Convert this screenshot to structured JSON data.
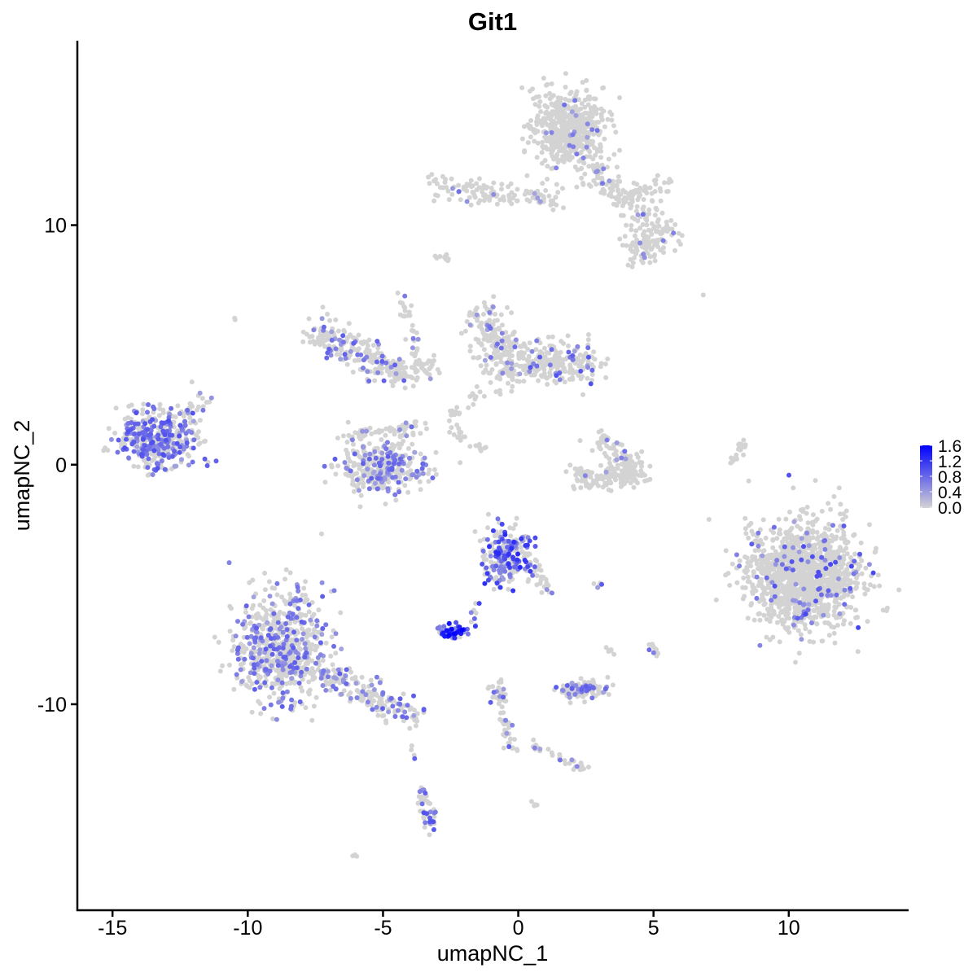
{
  "chart_data": {
    "type": "scatter",
    "title": "Git1",
    "xlabel": "umapNC_1",
    "ylabel": "umapNC_2",
    "xlim": [
      -16.3,
      14.4
    ],
    "ylim": [
      -18.6,
      17.7
    ],
    "x_ticks": [
      -15,
      -10,
      -5,
      0,
      5,
      10
    ],
    "x_tick_labels": [
      "-15",
      "-10",
      "-5",
      "0",
      "5",
      "10"
    ],
    "y_ticks": [
      -10,
      0,
      10
    ],
    "y_tick_labels": [
      "-10",
      "0",
      "10"
    ],
    "grid": false,
    "legend": {
      "placement": "right",
      "type": "colorbar",
      "range": [
        0,
        1.6
      ],
      "ticks": [
        "0.0",
        "0.4",
        "0.8",
        "1.2",
        "1.6"
      ],
      "low_color": "#D3D3D3",
      "high_color": "#0000FF"
    },
    "clusters": [
      {
        "kind": "blob",
        "center": [
          1.8,
          14.1
        ],
        "spread": [
          0.65,
          0.8
        ],
        "n": 520,
        "expr_frac": 0.03,
        "expr_max": 0.8
      },
      {
        "kind": "segment",
        "from": [
          2.4,
          12.4
        ],
        "to": [
          5.8,
          9.4
        ],
        "width": 0.35,
        "n": 160,
        "expr_frac": 0.06,
        "expr_max": 0.8
      },
      {
        "kind": "blob",
        "center": [
          4.6,
          9.0
        ],
        "spread": [
          0.35,
          0.35
        ],
        "n": 70,
        "expr_frac": 0.05,
        "expr_max": 0.8
      },
      {
        "kind": "segment",
        "from": [
          -3.2,
          11.7
        ],
        "to": [
          1.5,
          11.0
        ],
        "width": 0.25,
        "n": 130,
        "expr_frac": 0.06,
        "expr_max": 0.8
      },
      {
        "kind": "segment",
        "from": [
          4.0,
          11.3
        ],
        "to": [
          5.6,
          11.7
        ],
        "width": 0.2,
        "n": 40,
        "expr_frac": 0.0,
        "expr_max": 0.5
      },
      {
        "kind": "blob",
        "center": [
          -2.7,
          8.7
        ],
        "spread": [
          0.15,
          0.15
        ],
        "n": 10,
        "expr_frac": 0.0,
        "expr_max": 0.5
      },
      {
        "kind": "segment",
        "from": [
          -7.6,
          5.6
        ],
        "to": [
          -4.6,
          3.8
        ],
        "width": 0.35,
        "n": 200,
        "expr_frac": 0.25,
        "expr_max": 0.9
      },
      {
        "kind": "segment",
        "from": [
          -4.6,
          3.8
        ],
        "to": [
          -3.2,
          4.2
        ],
        "width": 0.25,
        "n": 60,
        "expr_frac": 0.05,
        "expr_max": 0.8
      },
      {
        "kind": "segment",
        "from": [
          -4.3,
          7.4
        ],
        "to": [
          -3.7,
          4.2
        ],
        "width": 0.1,
        "n": 30,
        "expr_frac": 0.1,
        "expr_max": 0.8
      },
      {
        "kind": "blob",
        "center": [
          -5.0,
          -0.1
        ],
        "spread": [
          0.8,
          0.55
        ],
        "n": 330,
        "expr_frac": 0.25,
        "expr_max": 0.9
      },
      {
        "kind": "segment",
        "from": [
          -6.3,
          1.2
        ],
        "to": [
          -3.6,
          1.6
        ],
        "width": 0.2,
        "n": 60,
        "expr_frac": 0.1,
        "expr_max": 0.8
      },
      {
        "kind": "segment",
        "from": [
          -1.3,
          6.2
        ],
        "to": [
          -0.3,
          3.6
        ],
        "width": 0.45,
        "n": 220,
        "expr_frac": 0.08,
        "expr_max": 0.8
      },
      {
        "kind": "segment",
        "from": [
          0.2,
          4.3
        ],
        "to": [
          2.6,
          4.2
        ],
        "width": 0.45,
        "n": 220,
        "expr_frac": 0.15,
        "expr_max": 1.0
      },
      {
        "kind": "segment",
        "from": [
          -2.5,
          2.0
        ],
        "to": [
          -1.2,
          3.2
        ],
        "width": 0.15,
        "n": 20,
        "expr_frac": 0.0,
        "expr_max": 0.5
      },
      {
        "kind": "segment",
        "from": [
          -2.6,
          1.6
        ],
        "to": [
          -1.2,
          0.6
        ],
        "width": 0.1,
        "n": 20,
        "expr_frac": 0.0,
        "expr_max": 0.5
      },
      {
        "kind": "blob",
        "center": [
          -13.4,
          1.1
        ],
        "spread": [
          0.7,
          0.55
        ],
        "n": 420,
        "expr_frac": 0.42,
        "expr_max": 1.0
      },
      {
        "kind": "segment",
        "from": [
          -12.6,
          2.0
        ],
        "to": [
          -11.5,
          2.8
        ],
        "width": 0.15,
        "n": 25,
        "expr_frac": 0.2,
        "expr_max": 0.8
      },
      {
        "kind": "segment",
        "from": [
          2.1,
          -0.6
        ],
        "to": [
          4.6,
          -0.4
        ],
        "width": 0.25,
        "n": 160,
        "expr_frac": 0.02,
        "expr_max": 0.6
      },
      {
        "kind": "segment",
        "from": [
          3.1,
          1.2
        ],
        "to": [
          4.4,
          -0.1
        ],
        "width": 0.25,
        "n": 70,
        "expr_frac": 0.08,
        "expr_max": 0.8
      },
      {
        "kind": "segment",
        "from": [
          7.8,
          -0.3
        ],
        "to": [
          8.3,
          1.0
        ],
        "width": 0.08,
        "n": 20,
        "expr_frac": 0.0,
        "expr_max": 0.5
      },
      {
        "kind": "blob",
        "center": [
          10.6,
          -4.6
        ],
        "spread": [
          1.05,
          1.1
        ],
        "n": 1300,
        "expr_frac": 0.06,
        "expr_max": 1.1
      },
      {
        "kind": "blob",
        "center": [
          -8.8,
          -7.6
        ],
        "spread": [
          0.8,
          1.1
        ],
        "n": 650,
        "expr_frac": 0.28,
        "expr_max": 0.9
      },
      {
        "kind": "segment",
        "from": [
          -7.4,
          -8.6
        ],
        "to": [
          -4.0,
          -10.4
        ],
        "width": 0.3,
        "n": 170,
        "expr_frac": 0.3,
        "expr_max": 0.9
      },
      {
        "kind": "blob",
        "center": [
          -0.5,
          -3.8
        ],
        "spread": [
          0.45,
          0.55
        ],
        "n": 230,
        "expr_frac": 0.45,
        "expr_max": 1.3
      },
      {
        "kind": "segment",
        "from": [
          0.3,
          -3.6
        ],
        "to": [
          1.2,
          -5.5
        ],
        "width": 0.12,
        "n": 30,
        "expr_frac": 0.3,
        "expr_max": 1.0
      },
      {
        "kind": "blob",
        "center": [
          -2.4,
          -7.0
        ],
        "spread": [
          0.3,
          0.15
        ],
        "n": 60,
        "expr_frac": 0.85,
        "expr_max": 1.6
      },
      {
        "kind": "segment",
        "from": [
          -1.8,
          -6.8
        ],
        "to": [
          -1.5,
          -5.8
        ],
        "width": 0.08,
        "n": 10,
        "expr_frac": 0.3,
        "expr_max": 1.2
      },
      {
        "kind": "blob",
        "center": [
          2.4,
          -9.4
        ],
        "spread": [
          0.45,
          0.18
        ],
        "n": 110,
        "expr_frac": 0.25,
        "expr_max": 0.9
      },
      {
        "kind": "segment",
        "from": [
          -0.8,
          -9.2
        ],
        "to": [
          -0.2,
          -12.0
        ],
        "width": 0.15,
        "n": 60,
        "expr_frac": 0.15,
        "expr_max": 0.9
      },
      {
        "kind": "segment",
        "from": [
          0.5,
          -11.7
        ],
        "to": [
          2.5,
          -12.7
        ],
        "width": 0.12,
        "n": 30,
        "expr_frac": 0.15,
        "expr_max": 0.8
      },
      {
        "kind": "segment",
        "from": [
          -3.6,
          -13.6
        ],
        "to": [
          -3.2,
          -15.3
        ],
        "width": 0.12,
        "n": 50,
        "expr_frac": 0.3,
        "expr_max": 1.0
      },
      {
        "kind": "segment",
        "from": [
          -3.9,
          -11.7
        ],
        "to": [
          -3.8,
          -12.3
        ],
        "width": 0.05,
        "n": 4,
        "expr_frac": 0.3,
        "expr_max": 0.9
      },
      {
        "kind": "segment",
        "from": [
          4.8,
          -7.4
        ],
        "to": [
          5.2,
          -7.9
        ],
        "width": 0.1,
        "n": 12,
        "expr_frac": 0.2,
        "expr_max": 0.9
      },
      {
        "kind": "segment",
        "from": [
          2.7,
          -5.1
        ],
        "to": [
          3.0,
          -5.0
        ],
        "width": 0.05,
        "n": 6,
        "expr_frac": 0.5,
        "expr_max": 1.0
      },
      {
        "kind": "segment",
        "from": [
          3.3,
          -7.6
        ],
        "to": [
          3.5,
          -8.0
        ],
        "width": 0.06,
        "n": 6,
        "expr_frac": 0.0,
        "expr_max": 0.5
      },
      {
        "kind": "blob",
        "center": [
          0.6,
          -14.2
        ],
        "spread": [
          0.08,
          0.06
        ],
        "n": 4,
        "expr_frac": 0.0,
        "expr_max": 0.5
      },
      {
        "kind": "blob",
        "center": [
          -6.0,
          -16.3
        ],
        "spread": [
          0.08,
          0.06
        ],
        "n": 3,
        "expr_frac": 0.0,
        "expr_max": 0.5
      },
      {
        "kind": "blob",
        "center": [
          -10.5,
          6.1
        ],
        "spread": [
          0.05,
          0.05
        ],
        "n": 2,
        "expr_frac": 0.0,
        "expr_max": 0.5
      },
      {
        "kind": "blob",
        "center": [
          6.8,
          7.1
        ],
        "spread": [
          0.05,
          0.05
        ],
        "n": 1,
        "expr_frac": 0.0,
        "expr_max": 0.5
      }
    ]
  }
}
